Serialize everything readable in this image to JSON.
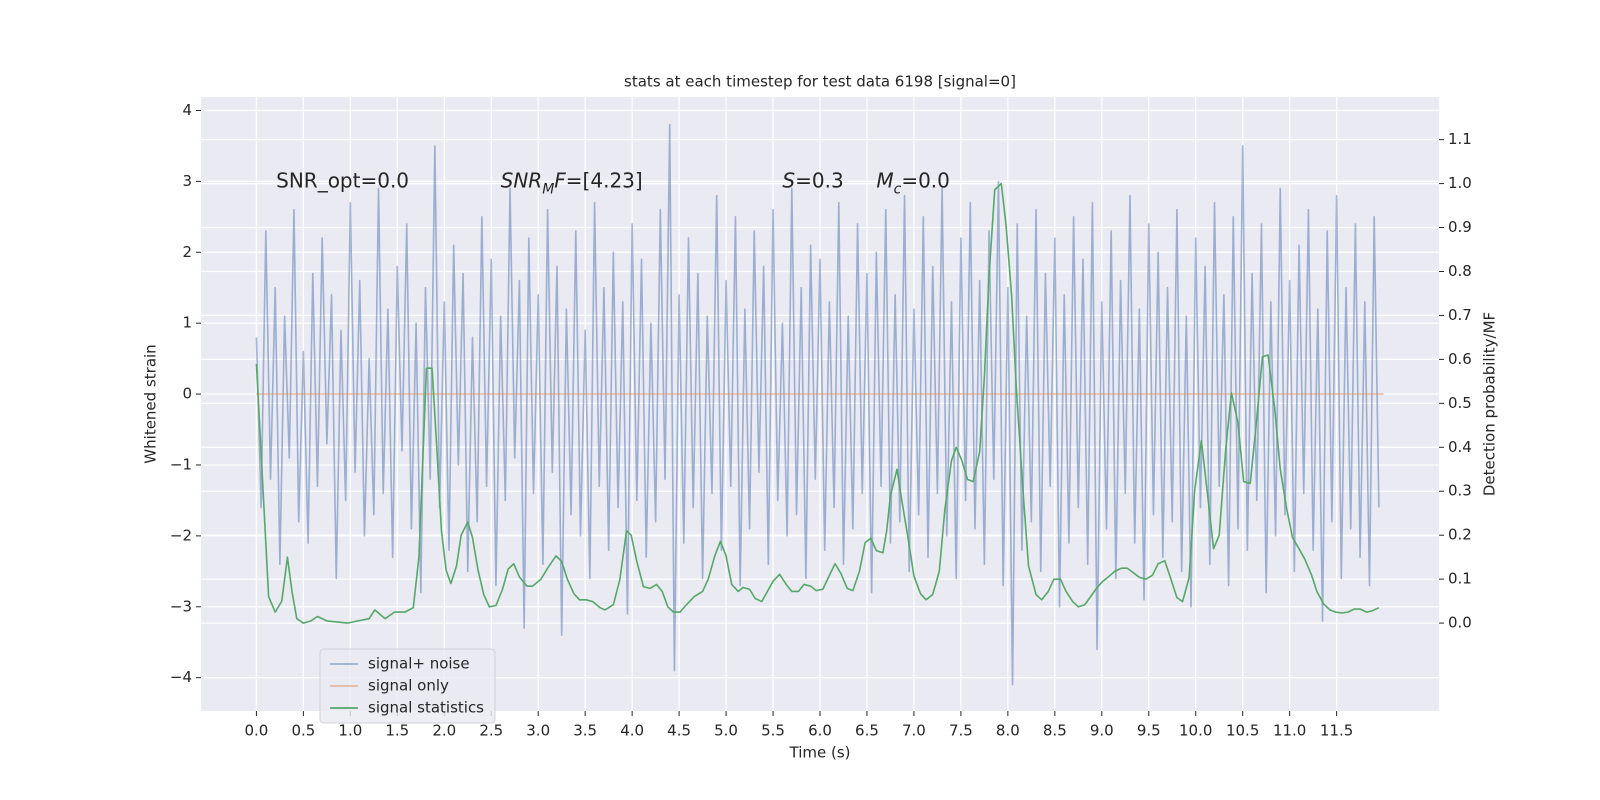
{
  "chart_data": {
    "type": "line",
    "title": "stats at each timestep for test data 6198 [signal=0]",
    "x_label": "Time (s)",
    "y_label": "Whitened strain",
    "y2_label": "Detection probability/MF",
    "xlim": [
      -0.59,
      12.59
    ],
    "ylim": [
      -4.47,
      4.19
    ],
    "y2lim": [
      -0.2,
      1.197
    ],
    "grid": true,
    "background": "#eaeaf2",
    "legend": "lower left",
    "xticks": [
      {
        "value": 0,
        "label": "0.0"
      },
      0.5,
      {
        "value": 1,
        "label": "1.0"
      },
      1.5,
      {
        "value": 2,
        "label": "2.0"
      },
      2.5,
      {
        "value": 3,
        "label": "3.0"
      },
      3.5,
      {
        "value": 4,
        "label": "4.0"
      },
      4.5,
      {
        "value": 5,
        "label": "5.0"
      },
      5.5,
      {
        "value": 6,
        "label": "6.0"
      },
      6.5,
      {
        "value": 7,
        "label": "7.0"
      },
      7.5,
      {
        "value": 8,
        "label": "8.0"
      },
      8.5,
      {
        "value": 9,
        "label": "9.0"
      },
      9.5,
      {
        "value": 10,
        "label": "10.0"
      },
      10.5,
      {
        "value": 11,
        "label": "11.0"
      },
      11.5
    ],
    "yticks": [
      {
        "value": -4,
        "label": "−4"
      },
      {
        "value": -3,
        "label": "−3"
      },
      {
        "value": -2,
        "label": "−2"
      },
      {
        "value": -1,
        "label": "−1"
      },
      0,
      1,
      2,
      3,
      4
    ],
    "y2ticks": [
      {
        "value": 0,
        "label": "0.0"
      },
      0.1,
      0.2,
      0.3,
      0.4,
      0.5,
      0.6,
      0.7,
      0.8,
      0.9,
      {
        "value": 1,
        "label": "1.0"
      },
      1.1
    ],
    "annotations": [
      {
        "x": 0.21,
        "y": 3.0,
        "parts": [
          {
            "text": "SNR_opt=0.0"
          }
        ]
      },
      {
        "x": 2.6,
        "y": 3.0,
        "parts": [
          {
            "text": "SNR",
            "style": "italic"
          },
          {
            "text": "M",
            "style": "italic-sub"
          },
          {
            "text": "F",
            "style": "italic"
          },
          {
            "text": "=[4.23]"
          }
        ]
      },
      {
        "x": 5.6,
        "y": 3.0,
        "parts": [
          {
            "text": "S",
            "style": "italic"
          },
          {
            "text": "=0.3"
          }
        ]
      },
      {
        "x": 6.6,
        "y": 3.0,
        "parts": [
          {
            "text": "M",
            "style": "italic"
          },
          {
            "text": "c",
            "style": "italic-sub"
          },
          {
            "text": "=0.0"
          }
        ]
      }
    ],
    "series": [
      {
        "name": "signal+ noise",
        "color": "#4c72b0",
        "alpha": 0.5,
        "x": [
          0,
          0.05,
          0.1,
          0.15,
          0.2,
          0.25,
          0.3,
          0.35,
          0.4,
          0.45,
          0.5,
          0.55,
          0.6,
          0.65,
          0.7,
          0.75,
          0.8,
          0.85,
          0.9,
          0.95,
          1,
          1.05,
          1.1,
          1.15,
          1.2,
          1.25,
          1.3,
          1.35,
          1.4,
          1.45,
          1.5,
          1.55,
          1.6,
          1.65,
          1.7,
          1.75,
          1.8,
          1.85,
          1.9,
          1.95,
          2,
          2.05,
          2.1,
          2.15,
          2.2,
          2.25,
          2.3,
          2.35,
          2.4,
          2.45,
          2.5,
          2.55,
          2.6,
          2.65,
          2.7,
          2.75,
          2.8,
          2.85,
          2.9,
          2.95,
          3,
          3.05,
          3.1,
          3.15,
          3.2,
          3.25,
          3.3,
          3.35,
          3.4,
          3.45,
          3.5,
          3.55,
          3.6,
          3.65,
          3.7,
          3.75,
          3.8,
          3.85,
          3.9,
          3.95,
          4,
          4.05,
          4.1,
          4.15,
          4.2,
          4.25,
          4.3,
          4.35,
          4.4,
          4.45,
          4.5,
          4.55,
          4.6,
          4.65,
          4.7,
          4.75,
          4.8,
          4.85,
          4.9,
          4.95,
          5,
          5.05,
          5.1,
          5.15,
          5.2,
          5.25,
          5.3,
          5.35,
          5.4,
          5.45,
          5.5,
          5.55,
          5.6,
          5.65,
          5.7,
          5.75,
          5.8,
          5.85,
          5.9,
          5.95,
          6,
          6.05,
          6.1,
          6.15,
          6.2,
          6.25,
          6.3,
          6.35,
          6.4,
          6.45,
          6.5,
          6.55,
          6.6,
          6.65,
          6.7,
          6.75,
          6.8,
          6.85,
          6.9,
          6.95,
          7,
          7.05,
          7.1,
          7.15,
          7.2,
          7.25,
          7.3,
          7.35,
          7.4,
          7.45,
          7.5,
          7.55,
          7.6,
          7.65,
          7.7,
          7.75,
          7.8,
          7.85,
          7.9,
          7.95,
          8,
          8.05,
          8.1,
          8.15,
          8.2,
          8.25,
          8.3,
          8.35,
          8.4,
          8.45,
          8.5,
          8.55,
          8.6,
          8.65,
          8.7,
          8.75,
          8.8,
          8.85,
          8.9,
          8.95,
          9,
          9.05,
          9.1,
          9.15,
          9.2,
          9.25,
          9.3,
          9.35,
          9.4,
          9.45,
          9.5,
          9.55,
          9.6,
          9.65,
          9.7,
          9.75,
          9.8,
          9.85,
          9.9,
          9.95,
          10,
          10.05,
          10.1,
          10.15,
          10.2,
          10.25,
          10.3,
          10.35,
          10.4,
          10.45,
          10.5,
          10.55,
          10.6,
          10.65,
          10.7,
          10.75,
          10.8,
          10.85,
          10.9,
          10.95,
          11,
          11.05,
          11.1,
          11.15,
          11.2,
          11.25,
          11.3,
          11.35,
          11.4,
          11.45,
          11.5,
          11.55,
          11.6,
          11.65,
          11.7,
          11.75,
          11.8,
          11.85,
          11.9,
          11.95
        ],
        "values": [
          0.8,
          -1.6,
          2.3,
          -1.2,
          1.5,
          -2.4,
          1.1,
          -0.9,
          2.6,
          -1.8,
          0.6,
          -2.1,
          1.7,
          -1.3,
          2.2,
          -0.7,
          1.4,
          -2.6,
          0.9,
          -1.5,
          2.7,
          -1.1,
          1.6,
          -2.0,
          0.5,
          -1.7,
          2.9,
          -1.4,
          1.2,
          -2.3,
          1.8,
          -0.8,
          2.4,
          -1.9,
          1.0,
          -2.8,
          1.5,
          -1.2,
          3.5,
          -1.6,
          1.3,
          -2.2,
          2.1,
          -1.0,
          1.7,
          -2.5,
          0.8,
          -1.8,
          2.5,
          -1.3,
          1.9,
          -2.7,
          1.1,
          -1.5,
          2.9,
          -0.9,
          1.6,
          -3.3,
          2.2,
          -1.4,
          1.4,
          -2.4,
          2.6,
          -1.1,
          1.8,
          -3.4,
          1.2,
          -1.7,
          2.3,
          -2.0,
          0.9,
          -2.6,
          2.7,
          -1.3,
          1.5,
          -2.2,
          2.0,
          -1.6,
          1.3,
          -3.1,
          2.4,
          -1.5,
          1.9,
          -2.3,
          1.0,
          -1.8,
          2.6,
          -1.2,
          3.8,
          -3.9,
          1.4,
          -2.1,
          2.2,
          -1.6,
          1.7,
          -2.6,
          1.1,
          -1.4,
          2.8,
          -2.2,
          1.6,
          -1.3,
          2.5,
          -2.7,
          1.2,
          -1.9,
          2.3,
          -1.1,
          1.8,
          -2.4,
          2.6,
          -1.5,
          1.0,
          -2.0,
          2.9,
          -1.7,
          1.5,
          -2.6,
          2.1,
          -1.2,
          1.9,
          -2.2,
          1.3,
          -1.6,
          2.7,
          -2.4,
          1.1,
          -1.9,
          2.4,
          -1.4,
          1.7,
          -2.8,
          2.0,
          -1.3,
          2.6,
          -2.1,
          1.4,
          -1.8,
          2.8,
          -2.5,
          1.2,
          -1.7,
          2.5,
          -2.3,
          1.8,
          -1.4,
          2.9,
          -2.0,
          1.3,
          -2.6,
          2.2,
          -1.5,
          2.7,
          -1.9,
          1.6,
          -2.4,
          2.3,
          -1.2,
          3.0,
          -2.7,
          1.5,
          -4.1,
          2.4,
          -2.2,
          1.1,
          -1.8,
          2.6,
          -2.5,
          1.7,
          -1.3,
          2.2,
          -3.0,
          1.4,
          -2.1,
          2.5,
          -1.6,
          1.9,
          -2.4,
          2.7,
          -3.6,
          1.3,
          -1.9,
          2.3,
          -2.6,
          1.6,
          -1.4,
          2.8,
          -2.1,
          1.2,
          -2.9,
          2.4,
          -1.7,
          2.0,
          -2.3,
          1.5,
          -1.8,
          2.6,
          -2.5,
          1.1,
          -3.0,
          2.2,
          -1.6,
          1.8,
          -2.4,
          2.7,
          -1.3,
          1.4,
          -2.7,
          2.5,
          -1.9,
          3.5,
          -2.2,
          1.7,
          -1.5,
          2.4,
          -2.8,
          1.3,
          -2.0,
          2.9,
          -1.7,
          1.6,
          -2.5,
          2.1,
          -1.4,
          2.6,
          -2.2,
          1.2,
          -3.2,
          2.3,
          -1.8,
          2.8,
          -2.6,
          1.5,
          -1.9,
          2.4,
          -2.3,
          1.3,
          -2.7,
          2.5,
          -1.6
        ]
      },
      {
        "name": "signal only",
        "color": "#dd8452",
        "alpha": 0.5,
        "x": [
          0,
          12
        ],
        "values": [
          0,
          0
        ]
      },
      {
        "name": "signal statistics",
        "color": "#55a868",
        "alpha": 1,
        "axis": "y2",
        "x": [
          0,
          0.13,
          0.2,
          0.27,
          0.33,
          0.38,
          0.43,
          0.5,
          0.58,
          0.65,
          0.75,
          0.97,
          1.08,
          1.2,
          1.26,
          1.37,
          1.47,
          1.58,
          1.67,
          1.73,
          1.81,
          1.87,
          1.92,
          1.97,
          2.02,
          2.07,
          2.13,
          2.18,
          2.25,
          2.3,
          2.36,
          2.42,
          2.48,
          2.55,
          2.62,
          2.68,
          2.74,
          2.8,
          2.88,
          2.94,
          3.03,
          3.1,
          3.19,
          3.25,
          3.31,
          3.38,
          3.44,
          3.51,
          3.58,
          3.66,
          3.71,
          3.8,
          3.87,
          3.94,
          3.99,
          4.05,
          4.12,
          4.19,
          4.26,
          4.32,
          4.38,
          4.44,
          4.51,
          4.57,
          4.66,
          4.75,
          4.81,
          4.88,
          4.94,
          5.0,
          5.06,
          5.13,
          5.18,
          5.25,
          5.31,
          5.38,
          5.44,
          5.5,
          5.57,
          5.64,
          5.7,
          5.77,
          5.83,
          5.9,
          5.96,
          6.03,
          6.09,
          6.16,
          6.22,
          6.29,
          6.35,
          6.42,
          6.48,
          6.54,
          6.6,
          6.67,
          6.71,
          6.75,
          6.82,
          6.87,
          6.94,
          7.0,
          7.07,
          7.13,
          7.2,
          7.27,
          7.33,
          7.4,
          7.45,
          7.51,
          7.57,
          7.63,
          7.7,
          7.75,
          7.8,
          7.86,
          7.93,
          7.98,
          8.04,
          8.09,
          8.16,
          8.22,
          8.3,
          8.36,
          8.43,
          8.49,
          8.56,
          8.62,
          8.69,
          8.75,
          8.82,
          8.88,
          8.95,
          9.01,
          9.08,
          9.14,
          9.21,
          9.27,
          9.34,
          9.4,
          9.47,
          9.54,
          9.6,
          9.67,
          9.73,
          9.8,
          9.86,
          9.93,
          9.99,
          10.06,
          10.12,
          10.19,
          10.25,
          10.32,
          10.38,
          10.45,
          10.51,
          10.58,
          10.64,
          10.71,
          10.77,
          10.84,
          10.9,
          10.97,
          11.03,
          11.1,
          11.16,
          11.23,
          11.29,
          11.36,
          11.43,
          11.49,
          11.56,
          11.62,
          11.69,
          11.75,
          11.82,
          11.88,
          11.95
        ],
        "values": [
          0.59,
          0.06,
          0.025,
          0.05,
          0.15,
          0.07,
          0.01,
          0.0,
          0.005,
          0.015,
          0.005,
          0.0,
          0.005,
          0.01,
          0.03,
          0.01,
          0.025,
          0.025,
          0.035,
          0.15,
          0.58,
          0.58,
          0.4,
          0.21,
          0.12,
          0.09,
          0.13,
          0.2,
          0.23,
          0.195,
          0.12,
          0.065,
          0.037,
          0.04,
          0.077,
          0.123,
          0.135,
          0.105,
          0.084,
          0.084,
          0.1,
          0.125,
          0.153,
          0.14,
          0.1,
          0.067,
          0.053,
          0.053,
          0.049,
          0.035,
          0.03,
          0.042,
          0.1,
          0.21,
          0.2,
          0.14,
          0.083,
          0.079,
          0.088,
          0.072,
          0.037,
          0.025,
          0.025,
          0.04,
          0.06,
          0.072,
          0.1,
          0.153,
          0.186,
          0.153,
          0.088,
          0.072,
          0.081,
          0.077,
          0.056,
          0.049,
          0.072,
          0.095,
          0.111,
          0.088,
          0.072,
          0.072,
          0.088,
          0.084,
          0.074,
          0.077,
          0.104,
          0.135,
          0.114,
          0.079,
          0.074,
          0.118,
          0.183,
          0.193,
          0.165,
          0.16,
          0.21,
          0.29,
          0.35,
          0.28,
          0.19,
          0.107,
          0.067,
          0.053,
          0.065,
          0.118,
          0.26,
          0.37,
          0.4,
          0.37,
          0.327,
          0.322,
          0.39,
          0.56,
          0.79,
          0.986,
          1.0,
          0.907,
          0.745,
          0.536,
          0.304,
          0.13,
          0.065,
          0.053,
          0.072,
          0.1,
          0.1,
          0.072,
          0.049,
          0.037,
          0.042,
          0.06,
          0.081,
          0.095,
          0.107,
          0.118,
          0.125,
          0.125,
          0.114,
          0.104,
          0.1,
          0.109,
          0.135,
          0.142,
          0.104,
          0.058,
          0.049,
          0.104,
          0.304,
          0.415,
          0.304,
          0.169,
          0.2,
          0.397,
          0.524,
          0.455,
          0.322,
          0.318,
          0.443,
          0.606,
          0.61,
          0.49,
          0.35,
          0.258,
          0.195,
          0.169,
          0.146,
          0.111,
          0.072,
          0.044,
          0.03,
          0.025,
          0.023,
          0.025,
          0.032,
          0.032,
          0.025,
          0.028,
          0.035
        ]
      }
    ]
  }
}
